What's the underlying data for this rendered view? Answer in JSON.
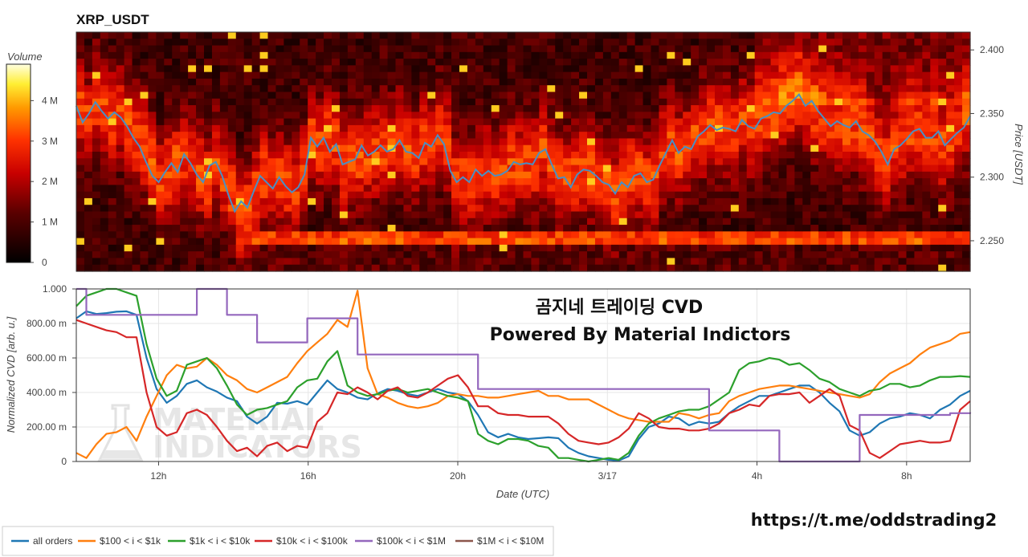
{
  "chart_data": [
    {
      "type": "heatmap",
      "title": "XRP_USDT",
      "ylabel": "Price [USDT]",
      "ylim": [
        2.226,
        2.414
      ],
      "y_ticks": [
        "2.400",
        "2.350",
        "2.300",
        "2.250"
      ],
      "y_tick_values": [
        2.4,
        2.35,
        2.3,
        2.25
      ],
      "colorbar": {
        "title": "Volume",
        "range": [
          0,
          4.9
        ],
        "ticks": [
          "0",
          "1 M",
          "2 M",
          "3 M",
          "4 M"
        ],
        "tick_values": [
          0,
          1,
          2,
          3,
          4
        ]
      },
      "price_series_color": "#4a8fc4",
      "price_series": [
        2.356,
        2.343,
        2.35,
        2.359,
        2.352,
        2.346,
        2.351,
        2.347,
        2.34,
        2.331,
        2.324,
        2.312,
        2.301,
        2.296,
        2.304,
        2.311,
        2.304,
        2.318,
        2.311,
        2.302,
        2.296,
        2.309,
        2.312,
        2.301,
        2.286,
        2.273,
        2.281,
        2.276,
        2.289,
        2.301,
        2.296,
        2.291,
        2.3,
        2.293,
        2.288,
        2.292,
        2.302,
        2.331,
        2.324,
        2.331,
        2.32,
        2.326,
        2.31,
        2.312,
        2.314,
        2.325,
        2.317,
        2.32,
        2.325,
        2.32,
        2.322,
        2.329,
        2.32,
        2.319,
        2.315,
        2.327,
        2.324,
        2.333,
        2.326,
        2.305,
        2.296,
        2.3,
        2.296,
        2.306,
        2.301,
        2.305,
        2.301,
        2.302,
        2.305,
        2.312,
        2.31,
        2.311,
        2.31,
        2.319,
        2.322,
        2.31,
        2.299,
        2.3,
        2.292,
        2.302,
        2.306,
        2.305,
        2.301,
        2.296,
        2.294,
        2.287,
        2.296,
        2.292,
        2.301,
        2.303,
        2.296,
        2.298,
        2.309,
        2.319,
        2.329,
        2.319,
        2.324,
        2.322,
        2.332,
        2.336,
        2.341,
        2.337,
        2.339,
        2.338,
        2.336,
        2.345,
        2.34,
        2.338,
        2.346,
        2.348,
        2.351,
        2.35,
        2.356,
        2.36,
        2.365,
        2.356,
        2.36,
        2.352,
        2.346,
        2.34,
        2.344,
        2.341,
        2.339,
        2.344,
        2.336,
        2.333,
        2.328,
        2.32,
        2.31,
        2.322,
        2.325,
        2.33,
        2.336,
        2.338,
        2.331,
        2.331,
        2.336,
        2.325,
        2.33,
        2.335,
        2.339,
        2.348
      ]
    },
    {
      "type": "line",
      "xlabel": "Date (UTC)",
      "ylabel": "Normalized CVD [arb. u.]",
      "ylim": [
        0,
        1000
      ],
      "x_ticks": [
        "12h",
        "16h",
        "20h",
        "3/17",
        "4h",
        "8h"
      ],
      "x_tick_values": [
        2.5,
        6.5,
        10.5,
        14.5,
        18.5,
        22.5
      ],
      "xlim": [
        0.3,
        24.2
      ],
      "y_ticks": [
        "0",
        "200.00 m",
        "400.00 m",
        "600.00 m",
        "800.00 m",
        "1.000"
      ],
      "y_tick_values": [
        0,
        200,
        400,
        600,
        800,
        1000
      ],
      "series": [
        {
          "name": "all orders",
          "color": "#1f77b4",
          "values": [
            830,
            870,
            855,
            860,
            868,
            870,
            850,
            600,
            420,
            340,
            380,
            450,
            470,
            430,
            405,
            370,
            350,
            260,
            220,
            260,
            340,
            335,
            350,
            330,
            400,
            470,
            420,
            400,
            370,
            360,
            395,
            420,
            410,
            390,
            380,
            400,
            420,
            400,
            390,
            350,
            270,
            170,
            140,
            160,
            140,
            130,
            135,
            140,
            135,
            80,
            50,
            30,
            20,
            10,
            5,
            30,
            130,
            200,
            220,
            260,
            250,
            210,
            230,
            220,
            230,
            280,
            320,
            350,
            380,
            380,
            400,
            420,
            440,
            440,
            400,
            340,
            290,
            180,
            150,
            170,
            220,
            250,
            260,
            280,
            270,
            250,
            300,
            330,
            380,
            410
          ]
        },
        {
          "name": "$100 < i < $1k",
          "color": "#ff7f0e",
          "values": [
            50,
            20,
            100,
            160,
            170,
            200,
            120,
            260,
            380,
            500,
            560,
            540,
            550,
            600,
            560,
            500,
            470,
            420,
            400,
            430,
            460,
            490,
            570,
            640,
            690,
            740,
            820,
            780,
            990,
            540,
            390,
            370,
            340,
            320,
            310,
            320,
            340,
            380,
            390,
            380,
            380,
            370,
            370,
            380,
            390,
            400,
            410,
            380,
            380,
            360,
            360,
            360,
            330,
            300,
            270,
            250,
            240,
            230,
            230,
            230,
            280,
            270,
            250,
            270,
            280,
            350,
            380,
            400,
            420,
            430,
            440,
            440,
            430,
            420,
            410,
            400,
            390,
            380,
            370,
            390,
            460,
            510,
            540,
            570,
            620,
            660,
            680,
            700,
            740,
            750
          ]
        },
        {
          "name": "$1k < i < $10k",
          "color": "#2ca02c",
          "values": [
            900,
            960,
            980,
            1000,
            1000,
            980,
            960,
            680,
            480,
            380,
            410,
            560,
            580,
            600,
            540,
            440,
            330,
            270,
            300,
            310,
            330,
            350,
            430,
            470,
            480,
            580,
            640,
            440,
            400,
            380,
            390,
            410,
            420,
            400,
            410,
            420,
            400,
            380,
            370,
            350,
            160,
            120,
            100,
            130,
            130,
            120,
            90,
            80,
            20,
            20,
            10,
            0,
            10,
            20,
            10,
            50,
            150,
            220,
            250,
            270,
            290,
            300,
            300,
            320,
            360,
            400,
            530,
            570,
            580,
            600,
            590,
            560,
            570,
            530,
            480,
            460,
            420,
            400,
            380,
            410,
            420,
            450,
            450,
            430,
            440,
            470,
            490,
            490,
            495,
            490
          ]
        },
        {
          "name": "$10k < i < $100k",
          "color": "#d62728",
          "values": [
            820,
            800,
            780,
            760,
            750,
            720,
            720,
            400,
            200,
            150,
            170,
            280,
            300,
            270,
            200,
            120,
            60,
            80,
            30,
            90,
            110,
            60,
            90,
            80,
            230,
            280,
            400,
            390,
            430,
            400,
            360,
            410,
            430,
            380,
            370,
            400,
            440,
            480,
            500,
            430,
            320,
            320,
            280,
            270,
            270,
            260,
            260,
            260,
            220,
            160,
            120,
            110,
            100,
            110,
            140,
            190,
            280,
            250,
            200,
            190,
            190,
            180,
            180,
            190,
            220,
            280,
            300,
            330,
            320,
            380,
            390,
            390,
            400,
            340,
            380,
            420,
            380,
            210,
            180,
            50,
            20,
            60,
            100,
            110,
            120,
            110,
            110,
            120,
            300,
            350
          ]
        },
        {
          "name": "$100k < i < $1M",
          "color": "#9467bd",
          "values": [
            1000,
            850,
            850,
            850,
            850,
            850,
            850,
            850,
            850,
            850,
            850,
            850,
            1000,
            1000,
            1000,
            850,
            850,
            850,
            690,
            690,
            690,
            690,
            690,
            830,
            830,
            830,
            830,
            830,
            620,
            620,
            620,
            620,
            620,
            620,
            620,
            620,
            620,
            620,
            620,
            620,
            420,
            420,
            420,
            420,
            420,
            420,
            420,
            420,
            420,
            420,
            420,
            420,
            420,
            420,
            420,
            420,
            420,
            420,
            420,
            420,
            420,
            420,
            420,
            180,
            180,
            180,
            180,
            180,
            180,
            180,
            0,
            0,
            0,
            0,
            0,
            0,
            0,
            0,
            270,
            270,
            270,
            270,
            270,
            270,
            270,
            270,
            270,
            280,
            280,
            285
          ]
        },
        {
          "name": "$1M < i < $10M",
          "color": "#8c564b",
          "values": []
        }
      ]
    }
  ],
  "overlay": {
    "title_line1": "곰지네 트레이딩 CVD",
    "title_line2": "Powered By Material Indictors",
    "link": "https://t.me/oddstrading2"
  },
  "watermark": {
    "line1": "MATERIAL",
    "line2": "INDICATORS"
  }
}
